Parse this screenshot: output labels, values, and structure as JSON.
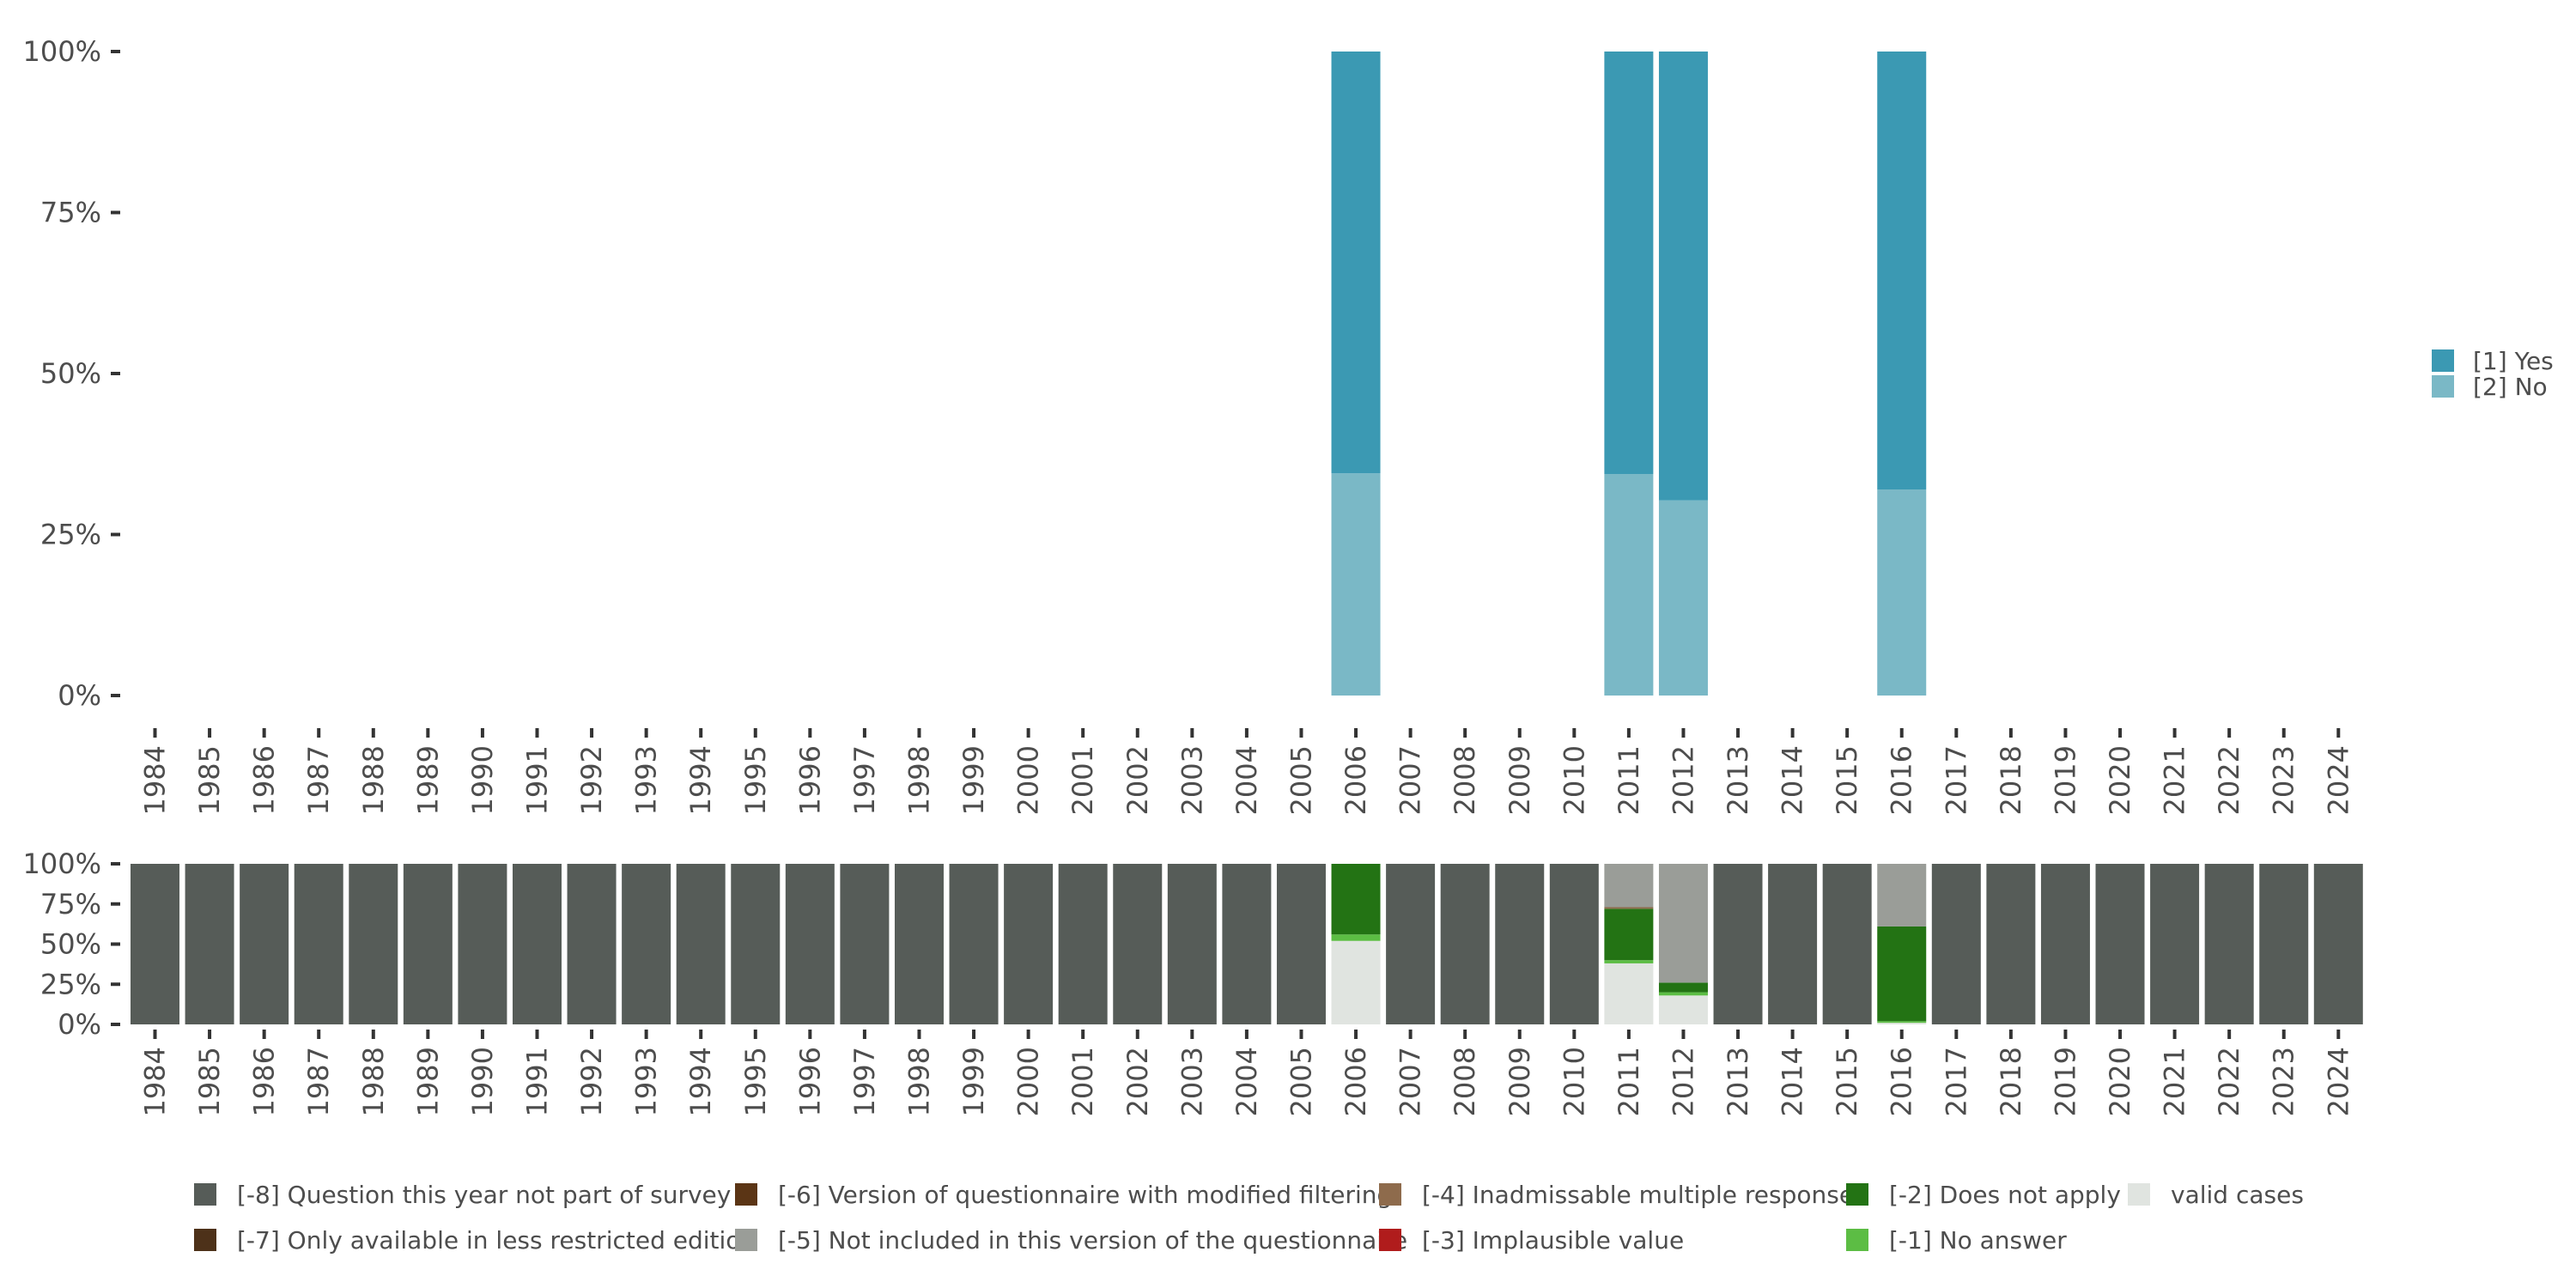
{
  "chart_data": [
    {
      "type": "bar",
      "stacked": true,
      "name": "answer-distribution",
      "categories": [
        "1984",
        "1985",
        "1986",
        "1987",
        "1988",
        "1989",
        "1990",
        "1991",
        "1992",
        "1993",
        "1994",
        "1995",
        "1996",
        "1997",
        "1998",
        "1999",
        "2000",
        "2001",
        "2002",
        "2003",
        "2004",
        "2005",
        "2006",
        "2007",
        "2008",
        "2009",
        "2010",
        "2011",
        "2012",
        "2013",
        "2014",
        "2015",
        "2016",
        "2017",
        "2018",
        "2019",
        "2020",
        "2021",
        "2022",
        "2023",
        "2024"
      ],
      "series": [
        {
          "name": "[2] No",
          "color": "#7ab8c6",
          "values": {
            "2006": 34.5,
            "2011": 34.4,
            "2012": 30.3,
            "2016": 32.0
          }
        },
        {
          "name": "[1] Yes",
          "color": "#3b99b3",
          "values": {
            "2006": 65.5,
            "2011": 65.6,
            "2012": 69.7,
            "2016": 68.0
          }
        }
      ],
      "ylim": [
        0,
        100
      ],
      "yticks": [
        "0%",
        "25%",
        "50%",
        "75%",
        "100%"
      ],
      "legend": [
        {
          "label": "[1] Yes",
          "color": "#3b99b3"
        },
        {
          "label": "[2] No",
          "color": "#7ab8c6"
        }
      ],
      "legend_position": "right"
    },
    {
      "type": "bar",
      "stacked": true,
      "name": "missing-value-distribution",
      "categories": [
        "1984",
        "1985",
        "1986",
        "1987",
        "1988",
        "1989",
        "1990",
        "1991",
        "1992",
        "1993",
        "1994",
        "1995",
        "1996",
        "1997",
        "1998",
        "1999",
        "2000",
        "2001",
        "2002",
        "2003",
        "2004",
        "2005",
        "2006",
        "2007",
        "2008",
        "2009",
        "2010",
        "2011",
        "2012",
        "2013",
        "2014",
        "2015",
        "2016",
        "2017",
        "2018",
        "2019",
        "2020",
        "2021",
        "2022",
        "2023",
        "2024"
      ],
      "default_full_category": "[-8] Question this year not part of survey",
      "stack_order": [
        "valid cases",
        "[-1] No answer",
        "[-2] Does not apply",
        "[-3] Implausible value",
        "[-4] Inadmissable multiple response",
        "[-5] Not included in this version of the questionnaire",
        "[-6] Version of questionnaire with modified filtering",
        "[-7] Only available in less restricted edition",
        "[-8] Question this year not part of survey"
      ],
      "stacks": {
        "2006": {
          "valid cases": 52,
          "[-1] No answer": 4,
          "[-2] Does not apply": 44
        },
        "2011": {
          "valid cases": 38,
          "[-1] No answer": 2,
          "[-2] Does not apply": 32,
          "[-5] Not included in this version of the questionnaire": 27,
          "[-4] Inadmissable multiple response": 1
        },
        "2012": {
          "valid cases": 18,
          "[-1] No answer": 2,
          "[-2] Does not apply": 6,
          "[-5] Not included in this version of the questionnaire": 74
        },
        "2016": {
          "valid cases": 1,
          "[-1] No answer": 1,
          "[-2] Does not apply": 59,
          "[-5] Not included in this version of the questionnaire": 39
        }
      },
      "ylim": [
        0,
        100
      ],
      "yticks": [
        "0%",
        "25%",
        "50%",
        "75%",
        "100%"
      ],
      "legend": [
        {
          "label": "[-8] Question this year not part of survey",
          "color": "#565c58"
        },
        {
          "label": "[-7] Only available in less restricted edition",
          "color": "#4d3119"
        },
        {
          "label": "[-6] Version of questionnaire with modified filtering",
          "color": "#5b3515"
        },
        {
          "label": "[-5] Not included in this version of the questionnaire",
          "color": "#9a9d98"
        },
        {
          "label": "[-4] Inadmissable multiple response",
          "color": "#8e6b4c"
        },
        {
          "label": "[-3] Implausible value",
          "color": "#b01c1c"
        },
        {
          "label": "[-2] Does not apply",
          "color": "#237314"
        },
        {
          "label": "[-1] No answer",
          "color": "#5cbd44"
        },
        {
          "label": "valid cases",
          "color": "#e0e4e0"
        }
      ],
      "legend_position": "bottom"
    }
  ]
}
